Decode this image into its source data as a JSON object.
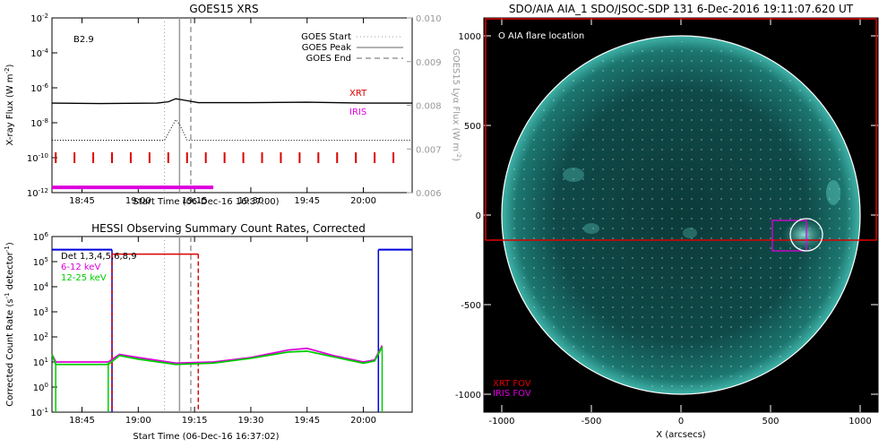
{
  "chart_data": [
    {
      "type": "line",
      "title": "GOES15 XRS",
      "xlabel": "Start Time (06-Dec-16 16:37:00)",
      "ylabel": "X-ray Flux (W m",
      "ylabel_sup": "-2",
      "ylabel_close": ")",
      "y2label": "GOES15 Lyα Flux (W m",
      "y2label_sup": "-2",
      "y2label_close": ")",
      "x_ticks": [
        "18:45",
        "19:00",
        "19:15",
        "19:30",
        "19:45",
        "20:00"
      ],
      "y_tick_exponents": [
        "-2",
        "-4",
        "-6",
        "-8",
        "-10",
        "-12"
      ],
      "y2_ticks": [
        "0.010",
        "0.009",
        "0.008",
        "0.007",
        "0.006"
      ],
      "ylim": [
        1e-12,
        0.01
      ],
      "y2lim": [
        0.006,
        0.01
      ],
      "yscale": "log",
      "class_label": "B2.9",
      "legend": [
        "GOES Start",
        "GOES Peak",
        "GOES End"
      ],
      "legend_placement": "top-right",
      "instrument_labels": [
        {
          "text": "XRT",
          "color": "#dd0000"
        },
        {
          "text": "IRIS",
          "color": "#dd00dd"
        }
      ],
      "events": {
        "goes_start": "19:07",
        "goes_peak": "19:11",
        "goes_end": "19:14"
      },
      "series": [
        {
          "name": "Lyα",
          "points": [
            [
              "18:37",
              0.00805
            ],
            [
              "18:50",
              0.00804
            ],
            [
              "19:05",
              0.00805
            ],
            [
              "19:08",
              0.00808
            ],
            [
              "19:10",
              0.00815
            ],
            [
              "19:12",
              0.00812
            ],
            [
              "19:16",
              0.00806
            ],
            [
              "19:30",
              0.00806
            ],
            [
              "19:45",
              0.00807
            ],
            [
              "20:00",
              0.00805
            ],
            [
              "20:13",
              0.00805
            ]
          ]
        },
        {
          "name": "XRS short",
          "points": [
            [
              "18:37",
              1e-09
            ],
            [
              "19:07",
              1e-09
            ],
            [
              "19:09",
              6e-09
            ],
            [
              "19:10",
              1.5e-08
            ],
            [
              "19:11",
              8e-09
            ],
            [
              "19:12",
              3e-09
            ],
            [
              "19:13",
              1e-09
            ],
            [
              "20:13",
              1e-09
            ]
          ]
        }
      ],
      "xrt_times": [
        "18:38",
        "18:43",
        "18:48",
        "18:53",
        "18:58",
        "19:03",
        "19:08",
        "19:13",
        "19:18",
        "19:23",
        "19:28",
        "19:33",
        "19:38",
        "19:43",
        "19:48",
        "19:53",
        "19:58",
        "20:03",
        "20:08"
      ],
      "iris_range": [
        "18:37",
        "19:20"
      ]
    },
    {
      "type": "line",
      "title": "HESSI Observing Summary Count Rates, Corrected",
      "xlabel": "Start Time (06-Dec-16 16:37:02)",
      "ylabel": "Corrected Count Rate (s",
      "ylabel_sup": "-1",
      "ylabel_mid": " detector",
      "ylabel_sup2": "-1",
      "ylabel_close": ")",
      "x_ticks": [
        "18:45",
        "19:00",
        "19:15",
        "19:30",
        "19:45",
        "20:00"
      ],
      "y_tick_exponents": [
        "6",
        "5",
        "4",
        "3",
        "2",
        "1",
        "0",
        "-1"
      ],
      "ylim": [
        0.1,
        1000000.0
      ],
      "yscale": "log",
      "legend": [
        {
          "text": "Det 1,3,4,5,6,8,9",
          "color": "#000000"
        },
        {
          "text": "6-12 keV",
          "color": "#dd00dd"
        },
        {
          "text": "12-25 keV",
          "color": "#00cc00"
        }
      ],
      "legend_placement": "top-left",
      "flag_levels": [
        {
          "color": "#0000dd",
          "ranges": [
            [
              "18:37",
              "18:53"
            ],
            [
              "20:04",
              "20:13"
            ]
          ]
        },
        {
          "color": "#dd0000",
          "ranges": [
            [
              "18:53",
              "19:16"
            ]
          ]
        }
      ],
      "series": [
        {
          "name": "6-12 keV",
          "points": [
            [
              "18:37",
              20
            ],
            [
              "18:38",
              10
            ],
            [
              "18:52",
              10
            ],
            [
              "18:55",
              20
            ],
            [
              "19:00",
              15
            ],
            [
              "19:10",
              9
            ],
            [
              "19:20",
              10
            ],
            [
              "19:30",
              15
            ],
            [
              "19:40",
              30
            ],
            [
              "19:45",
              35
            ],
            [
              "19:52",
              18
            ],
            [
              "20:00",
              10
            ],
            [
              "20:03",
              12
            ],
            [
              "20:05",
              45
            ]
          ]
        },
        {
          "name": "12-25 keV",
          "points": [
            [
              "18:37",
              20
            ],
            [
              "18:38",
              8
            ],
            [
              "18:52",
              8
            ],
            [
              "18:55",
              18
            ],
            [
              "19:00",
              13
            ],
            [
              "19:10",
              8
            ],
            [
              "19:20",
              9
            ],
            [
              "19:30",
              14
            ],
            [
              "19:40",
              25
            ],
            [
              "19:45",
              27
            ],
            [
              "19:52",
              16
            ],
            [
              "20:00",
              9
            ],
            [
              "20:03",
              11
            ],
            [
              "20:05",
              40
            ]
          ]
        }
      ]
    },
    {
      "type": "image",
      "title": "SDO/AIA AIA_1 SDO/JSOC-SDP 131   6-Dec-2016 19:11:07.620 UT",
      "xlabel": "X (arcsecs)",
      "x_ticks": [
        "-1000",
        "-500",
        "0",
        "500",
        "1000"
      ],
      "y_ticks": [
        "1000",
        "500",
        "0",
        "-500",
        "-1000"
      ],
      "xlim": [
        -1100,
        1100
      ],
      "ylim": [
        -1100,
        1100
      ],
      "annotation": "O AIA flare location",
      "fov_labels": [
        {
          "text": "XRT FOV",
          "color": "#dd0000"
        },
        {
          "text": "IRIS FOV",
          "color": "#dd00dd"
        }
      ],
      "flare_location": [
        700,
        -110
      ],
      "xrt_fov": [
        -1100,
        1100,
        -135,
        1100
      ],
      "iris_fov": [
        510,
        700,
        -30,
        -200
      ]
    }
  ]
}
